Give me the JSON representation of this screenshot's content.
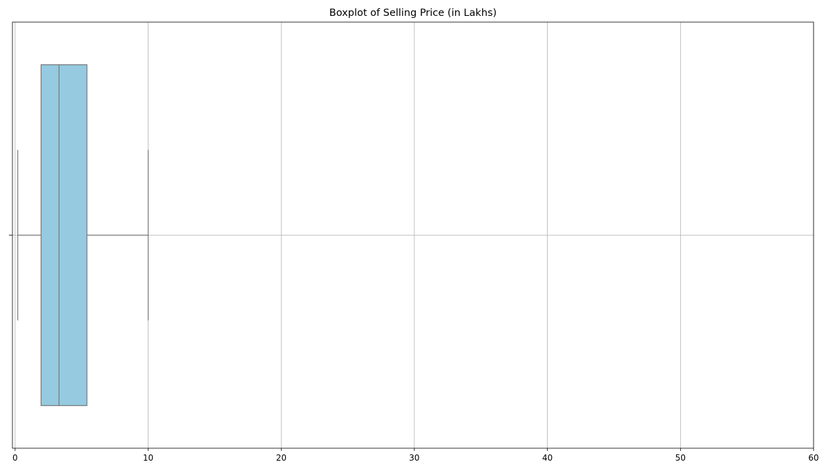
{
  "chart_data": {
    "type": "boxplot",
    "orientation": "horizontal",
    "title": "Boxplot of Selling Price (in Lakhs)",
    "xlabel": "",
    "ylabel": "",
    "xlim": [
      -0.2,
      60
    ],
    "xticks": [
      0,
      10,
      20,
      30,
      40,
      50,
      60
    ],
    "grid": true,
    "box": {
      "whisker_low": 0.2,
      "q1": 1.95,
      "median": 3.3,
      "q3": 5.4,
      "whisker_high": 10.0,
      "fill_color": "#95cae0",
      "edge_color": "#777777"
    }
  }
}
